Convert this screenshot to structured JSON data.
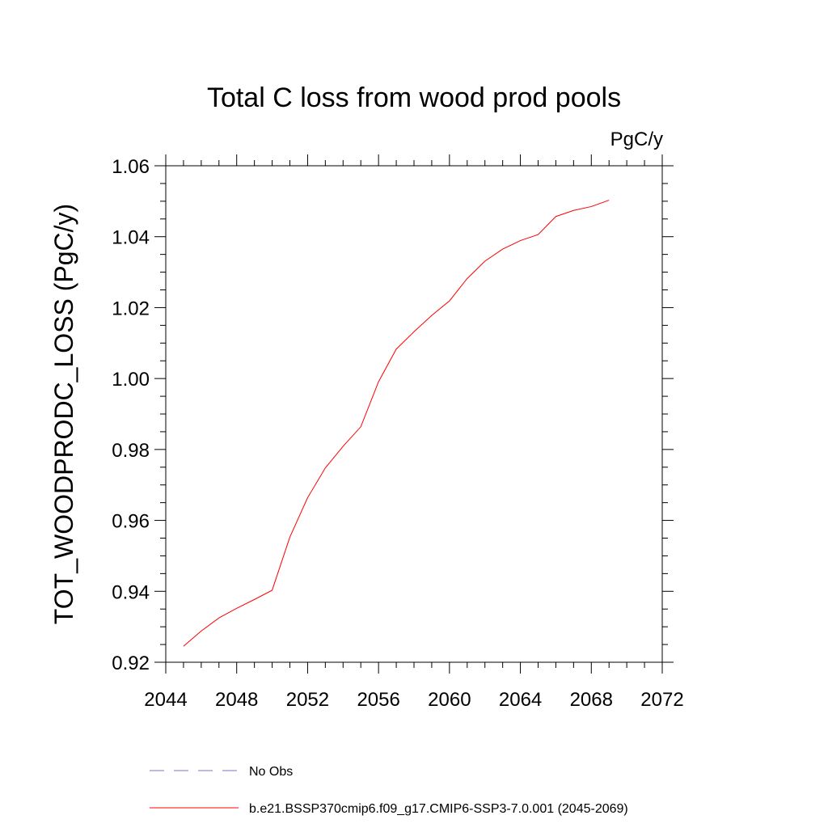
{
  "chart_data": {
    "type": "line",
    "title": "Total C loss from wood prod pools",
    "units": "PgC/y",
    "xlabel": "",
    "ylabel": "TOT_WOODPRODC_LOSS  (PgC/y)",
    "xlim": [
      2044,
      2072
    ],
    "ylim": [
      0.92,
      1.06
    ],
    "xticks": [
      "2044",
      "2048",
      "2052",
      "2056",
      "2060",
      "2064",
      "2068",
      "2072"
    ],
    "yticks": [
      "0.92",
      "0.94",
      "0.96",
      "0.98",
      "1.00",
      "1.02",
      "1.04",
      "1.06"
    ],
    "grid": false,
    "legend_position": "bottom",
    "series": [
      {
        "name": "No Obs",
        "color": "#7b73c9",
        "dash": "dashed",
        "x": [],
        "y": []
      },
      {
        "name": "b.e21.BSSP370cmip6.f09_g17.CMIP6-SSP3-7.0.001 (2045-2069)",
        "color": "#ff0000",
        "dash": "solid",
        "x": [
          2045,
          2046,
          2047,
          2048,
          2049,
          2050,
          2051,
          2052,
          2053,
          2054,
          2055,
          2056,
          2057,
          2058,
          2059,
          2060,
          2061,
          2062,
          2063,
          2064,
          2065,
          2066,
          2067,
          2068,
          2069
        ],
        "y": [
          0.9245,
          0.9288,
          0.9325,
          0.9352,
          0.9377,
          0.9403,
          0.9553,
          0.9664,
          0.9748,
          0.9809,
          0.9864,
          0.9991,
          1.0083,
          1.0132,
          1.0178,
          1.0219,
          1.0282,
          1.0331,
          1.0365,
          1.0389,
          1.0406,
          1.0457,
          1.0474,
          1.0485,
          1.0503
        ]
      }
    ]
  }
}
